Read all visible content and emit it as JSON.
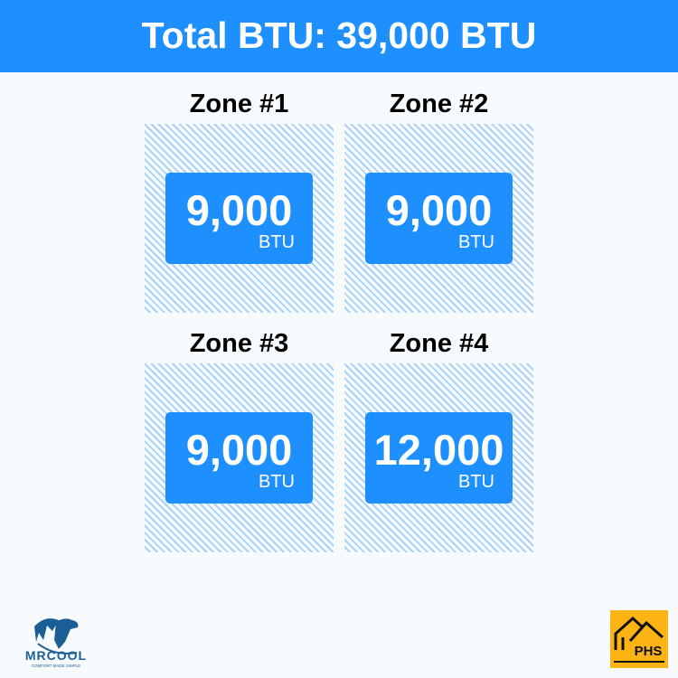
{
  "header": {
    "title": "Total BTU: 39,000 BTU"
  },
  "zones": [
    {
      "title": "Zone #1",
      "value": "9,000",
      "unit": "BTU"
    },
    {
      "title": "Zone #2",
      "value": "9,000",
      "unit": "BTU"
    },
    {
      "title": "Zone #3",
      "value": "9,000",
      "unit": "BTU"
    },
    {
      "title": "Zone #4",
      "value": "12,000",
      "unit": "BTU"
    }
  ],
  "logos": {
    "left": "MRCOOL",
    "left_tagline": "COMFORT MADE SIMPLE",
    "right": "PHS"
  },
  "colors": {
    "accent": "#1e8ffe",
    "hatch": "#a9d2f6",
    "phs": "#fcb414",
    "mrcool": "#1b5e96"
  }
}
